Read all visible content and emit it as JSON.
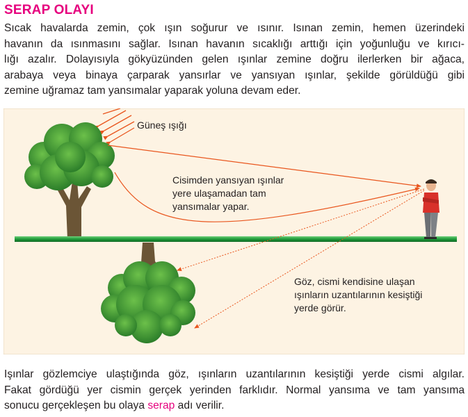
{
  "title": "SERAP OLAYI",
  "intro_lines": [
    "Sıcak havalarda zemin, çok ışın soğurur ve ısınır. Isınan zemin, hemen üzerindeki",
    "havanın da ısınmasını sağlar. Isınan havanın sıcaklığı arttığı için yoğunluğu ve kırıcı-",
    "lığı azalır. Dolayısıyla gökyüzünden gelen ışınlar zemine doğru ilerlerken bir ağaca,",
    "arabaya veya binaya çarparak yansırlar ve yansıyan ışınlar, şekilde görüldüğü gibi",
    "zemine uğramaz tam yansımalar yaparak yoluna devam eder."
  ],
  "figure": {
    "sun_label": "Güneş ışığı",
    "reflected_label": [
      "Cisimden yansıyan ışınlar",
      "yere ulaşamadan tam",
      "yansımalar yapar."
    ],
    "eye_label": [
      "Göz, cismi kendisine ulaşan",
      "ışınların uzantılarının kesiştiği",
      "yerde görür."
    ],
    "colors": {
      "background": "#fdf3e3",
      "ground": "#1f9a3a",
      "ray": "#e9561e",
      "foliage": "#3d9b35",
      "trunk": "#6b5536",
      "person_shirt": "#d8312a"
    }
  },
  "outro": {
    "line1": "Işınlar gözlemciye ulaştığında göz, ışınların uzantılarının kesiştiği yerde cismi algılar.",
    "line2": "Fakat gördüğü yer cismin gerçek yerinden farklıdır. Normal yansıma ve tam yansıma",
    "line3_before": "sonucu gerçekleşen bu olaya ",
    "line3_highlight": "serap",
    "line3_after": " adı verilir."
  }
}
